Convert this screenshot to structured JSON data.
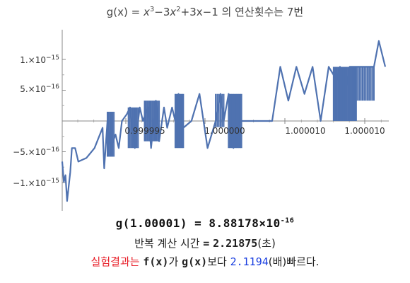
{
  "title": {
    "prefix": "g(x) = ",
    "x1": "x",
    "e1": "3",
    "mid1": "−3",
    "x2": "x",
    "e2": "2",
    "tail": "+3x−1",
    "korean": " 의 연산횟수는 7번"
  },
  "y_ticks": [
    {
      "mant": "1.×10",
      "exp": "−15"
    },
    {
      "mant": "5.×10",
      "exp": "−16"
    },
    {
      "mant": "−5.×10",
      "exp": "−16"
    },
    {
      "mant": "−1.×10",
      "exp": "−15"
    }
  ],
  "x_ticks": [
    "0.999995",
    "1.000000",
    "1.000010",
    "1.000010"
  ],
  "chart_data": {
    "type": "line",
    "title": "g(x) = x^3−3x^2+3x−1 의 연산횟수는 7번",
    "xlabel": "",
    "ylabel": "",
    "xlim": [
      0.99999,
      1.00001
    ],
    "ylim": [
      -1.3e-15,
      1.4e-15
    ],
    "series_color": "#4f72b0",
    "grid": false,
    "series": [
      {
        "x": [
          0.99999,
          0.9999901,
          0.9999902,
          0.9999903,
          0.9999905,
          0.9999906,
          0.9999908,
          0.999991,
          0.9999915,
          0.999992,
          0.9999925,
          0.9999926,
          0.9999928,
          0.999993,
          0.9999933,
          0.9999935,
          0.9999937,
          0.999994,
          0.9999942,
          0.9999945,
          0.9999948,
          0.999995,
          0.9999953,
          0.9999955,
          0.9999958,
          0.999996,
          0.9999963,
          0.9999965,
          0.9999968,
          0.999997,
          0.9999972,
          0.9999975,
          0.999998,
          0.9999985,
          0.999999,
          0.9999995,
          0.9999998,
          1.0,
          1.0000003,
          1.0000006,
          1.000001,
          1.0000015,
          1.000002,
          1.0000025,
          1.000003,
          1.0000035,
          1.000004,
          1.0000045,
          1.000005,
          1.0000055,
          1.000006,
          1.0000065,
          1.000007,
          1.0000072,
          1.0000075,
          1.0000078,
          1.000008,
          1.0000085,
          1.000009,
          1.0000093,
          1.0000096,
          1.00001
        ],
        "y": [
          -6.6e-16,
          -9.9e-16,
          -8.8e-16,
          -1.3e-15,
          -8.3e-16,
          -4.4e-16,
          -4.4e-16,
          -6.6e-16,
          -6e-16,
          -4.4e-16,
          -1.1e-16,
          -7.7e-16,
          0.0,
          -4.4e-16,
          -2.2e-16,
          -4.4e-16,
          0.0,
          1.1e-16,
          2.2e-16,
          -4.4e-16,
          2.2e-16,
          0.0,
          2.2e-16,
          -4.4e-16,
          3.3e-16,
          -3.3e-16,
          2.2e-16,
          -1.1e-16,
          2.2e-16,
          0.0,
          4.4e-16,
          -1.1e-16,
          0.0,
          4.4e-16,
          -4.4e-16,
          0.0,
          4.4e-16,
          0.0,
          4.4e-16,
          -4.4e-16,
          0.0,
          0.0,
          0.0,
          0.0,
          0.0,
          8.8e-16,
          3.3e-16,
          8.8e-16,
          4.4e-16,
          8.8e-16,
          0.0,
          8.8e-16,
          6.6e-16,
          8.8e-16,
          4.4e-16,
          8.8e-16,
          8.8e-16,
          8.8e-16,
          8.8e-16,
          8.8e-16,
          1.3e-15,
          8.8e-16
        ]
      }
    ]
  },
  "result": {
    "line1_left": "g(1.00001)",
    "line1_eq": "=",
    "line1_mant": "8.88178",
    "line1_times": "×",
    "line1_base": "10",
    "line1_exp": "-16",
    "line2_label": "반복 계산 시간",
    "line2_eq": "=",
    "line2_value": "2.21875",
    "line2_unit": "(초)",
    "line3_red": "실험결과는",
    "line3_f": "f(x)",
    "line3_ga": "가",
    "line3_g": "g(x)",
    "line3_boda": "보다",
    "line3_value": "2.1194",
    "line3_unit": "(배)",
    "line3_end": "빠르다."
  }
}
